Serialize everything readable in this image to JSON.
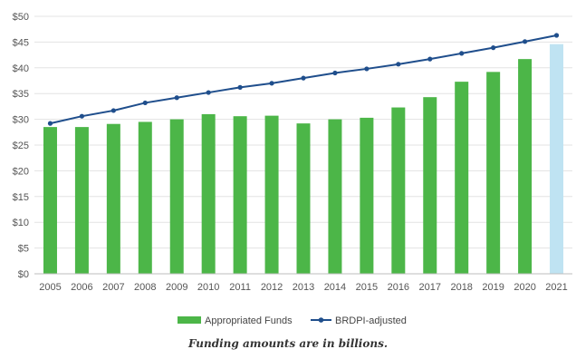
{
  "chart_data": {
    "type": "bar",
    "categories": [
      "2005",
      "2006",
      "2007",
      "2008",
      "2009",
      "2010",
      "2011",
      "2012",
      "2013",
      "2014",
      "2015",
      "2016",
      "2017",
      "2018",
      "2019",
      "2020",
      "2021"
    ],
    "series": [
      {
        "name": "Appropriated Funds",
        "kind": "bar",
        "color": "#4cb648",
        "values": [
          28.5,
          28.5,
          29.1,
          29.5,
          30.0,
          31.0,
          30.6,
          30.7,
          29.2,
          30.0,
          30.3,
          32.3,
          34.3,
          37.3,
          39.2,
          41.7,
          44.6
        ],
        "projected_color": "#bfe3f2",
        "projected_categories": [
          "2021"
        ]
      },
      {
        "name": "BRDPI-adjusted",
        "kind": "line",
        "color": "#1f4e8c",
        "values": [
          29.2,
          30.6,
          31.7,
          33.2,
          34.2,
          35.2,
          36.2,
          37.0,
          38.0,
          39.0,
          39.8,
          40.7,
          41.7,
          42.8,
          43.9,
          45.1,
          46.3
        ]
      }
    ],
    "ylim": [
      0,
      50
    ],
    "yticks": [
      "$0",
      "$5",
      "$10",
      "$15",
      "$20",
      "$25",
      "$30",
      "$35",
      "$40",
      "$45",
      "$50"
    ],
    "ytick_values": [
      0,
      5,
      10,
      15,
      20,
      25,
      30,
      35,
      40,
      45,
      50
    ],
    "grid": true,
    "legend": "bottom",
    "caption": "Funding amounts are in billions."
  }
}
